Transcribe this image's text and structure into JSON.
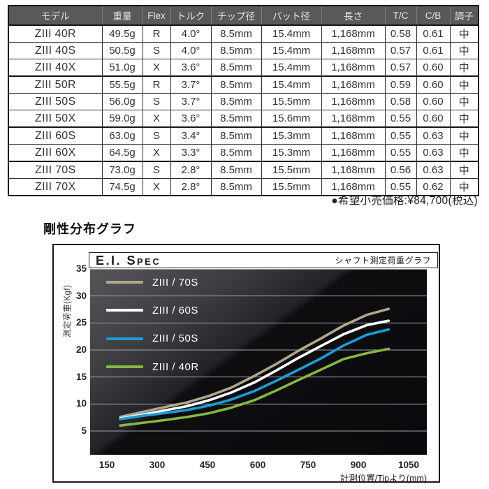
{
  "table": {
    "headers": [
      "モデル",
      "重量",
      "Flex",
      "トルク",
      "チップ径",
      "バット径",
      "長さ",
      "T/C",
      "C/B",
      "調子"
    ],
    "rows": [
      [
        "ZIII 40R",
        "49.5g",
        "R",
        "4.0°",
        "8.5mm",
        "15.4mm",
        "1,168mm",
        "0.58",
        "0.61",
        "中"
      ],
      [
        "ZIII 40S",
        "50.5g",
        "S",
        "4.0°",
        "8.5mm",
        "15.4mm",
        "1,168mm",
        "0.57",
        "0.61",
        "中"
      ],
      [
        "ZIII 40X",
        "51.0g",
        "X",
        "3.6°",
        "8.5mm",
        "15.4mm",
        "1,168mm",
        "0.57",
        "0.60",
        "中"
      ],
      [
        "ZIII 50R",
        "55.5g",
        "R",
        "3.7°",
        "8.5mm",
        "15.4mm",
        "1,168mm",
        "0.59",
        "0.60",
        "中"
      ],
      [
        "ZIII 50S",
        "56.0g",
        "S",
        "3.7°",
        "8.5mm",
        "15.5mm",
        "1,168mm",
        "0.58",
        "0.60",
        "中"
      ],
      [
        "ZIII 50X",
        "59.0g",
        "X",
        "3.6°",
        "8.5mm",
        "15.6mm",
        "1,168mm",
        "0.55",
        "0.60",
        "中"
      ],
      [
        "ZIII 60S",
        "63.0g",
        "S",
        "3.4°",
        "8.5mm",
        "15.3mm",
        "1,168mm",
        "0.55",
        "0.63",
        "中"
      ],
      [
        "ZIII 60X",
        "64.5g",
        "X",
        "3.3°",
        "8.5mm",
        "15.3mm",
        "1,168mm",
        "0.55",
        "0.63",
        "中"
      ],
      [
        "ZIII 70S",
        "73.0g",
        "S",
        "2.8°",
        "8.5mm",
        "15.5mm",
        "1,168mm",
        "0.56",
        "0.63",
        "中"
      ],
      [
        "ZIII 70X",
        "74.5g",
        "X",
        "2.8°",
        "8.5mm",
        "15.5mm",
        "1,168mm",
        "0.55",
        "0.62",
        "中"
      ]
    ],
    "group_end_rows": [
      2,
      5,
      7
    ]
  },
  "price_note": "●希望小売価格:¥84,700(税込)",
  "section_title": "剛性分布グラフ",
  "chart_data": {
    "type": "line",
    "title": "E.I. Spec",
    "subtitle": "シャフト測定荷重グラフ",
    "xlabel": "計測位置/Tipより(mm)",
    "ylabel": "測定荷重(Kgf)",
    "x_ticks": [
      150,
      300,
      450,
      600,
      750,
      900,
      1050
    ],
    "y_ticks": [
      5,
      10,
      15,
      20,
      25,
      30,
      35
    ],
    "xlim": [
      100,
      1104
    ],
    "ylim": [
      0.6,
      35
    ],
    "grid": true,
    "legend_position": "top-left",
    "x": [
      190,
      255,
      320,
      390,
      455,
      520,
      590,
      655,
      720,
      790,
      855,
      925,
      990
    ],
    "series": [
      {
        "name": "ZIII / 70S",
        "color": "#b2a68c",
        "values": [
          7.6,
          8.5,
          9.4,
          10.3,
          11.5,
          13.0,
          15.2,
          17.4,
          19.8,
          22.2,
          24.5,
          26.5,
          27.6
        ]
      },
      {
        "name": "ZIII / 60S",
        "color": "#ffffff",
        "values": [
          7.3,
          8.0,
          8.8,
          9.6,
          10.7,
          12.1,
          14.0,
          16.2,
          18.5,
          20.8,
          22.9,
          24.6,
          25.4
        ]
      },
      {
        "name": "ZIII / 50S",
        "color": "#1e9bd7",
        "values": [
          7.2,
          7.8,
          8.3,
          8.9,
          9.7,
          10.8,
          12.4,
          14.3,
          16.3,
          18.5,
          20.8,
          22.8,
          23.8
        ]
      },
      {
        "name": "ZIII / 40R",
        "color": "#84b841",
        "values": [
          6.0,
          6.5,
          7.0,
          7.6,
          8.3,
          9.3,
          10.7,
          12.5,
          14.4,
          16.4,
          18.3,
          19.4,
          20.2
        ]
      }
    ]
  },
  "colors": {
    "table_header_bg": "#59595b",
    "table_border": "#161616",
    "gridline": "#a0a0a4",
    "plot_bg_light": "#55555a",
    "plot_bg_dark": "#0a0a0d"
  }
}
